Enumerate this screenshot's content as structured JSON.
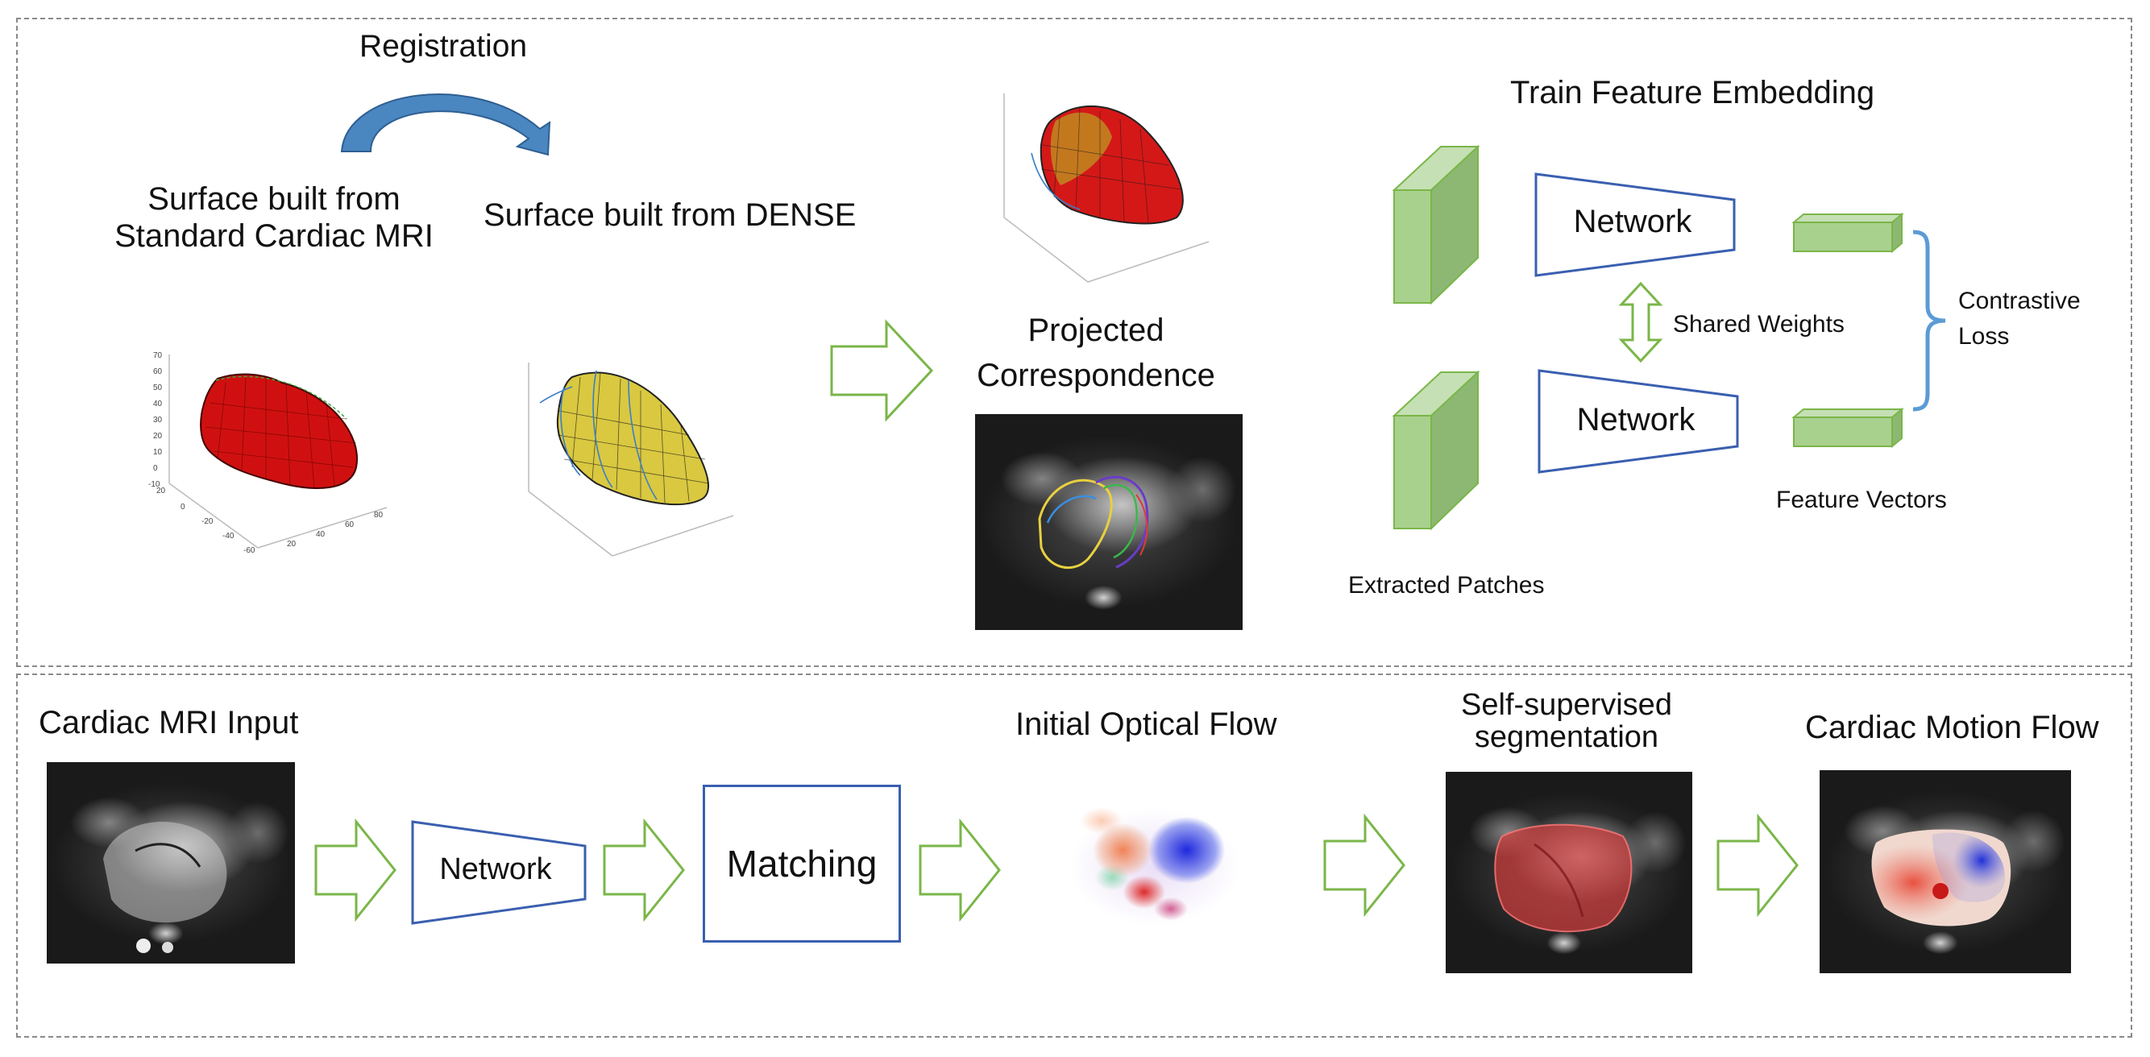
{
  "top_panel": {
    "registration_label": "Registration",
    "surface_standard_label_line1": "Surface built from",
    "surface_standard_label_line2": "Standard Cardiac MRI",
    "surface_dense_label": "Surface built from DENSE",
    "projected_label_line1": "Projected",
    "projected_label_line2": "Correspondence",
    "train_title": "Train Feature Embedding",
    "network_top_label": "Network",
    "network_bottom_label": "Network",
    "shared_weights_label": "Shared Weights",
    "contrastive_label_line1": "Contrastive",
    "contrastive_label_line2": "Loss",
    "feature_vectors_label": "Feature Vectors",
    "extracted_patches_label": "Extracted Patches",
    "plot_axis_ticks_z": [
      "70",
      "60",
      "50",
      "40",
      "30",
      "20",
      "10",
      "0",
      "-10"
    ],
    "plot_axis_ticks_x": [
      "20",
      "0",
      "-20",
      "-40",
      "-60"
    ],
    "plot_axis_ticks_y": [
      "20",
      "40",
      "60",
      "80"
    ]
  },
  "bottom_panel": {
    "input_label": "Cardiac MRI Input",
    "network_label": "Network",
    "matching_label": "Matching",
    "optical_flow_label": "Initial Optical Flow",
    "segmentation_label_line1": "Self-supervised",
    "segmentation_label_line2": "segmentation",
    "motion_flow_label": "Cardiac Motion Flow"
  },
  "colors": {
    "arrow_green": "#7ab648",
    "network_blue": "#3a5fb0",
    "box_green_front": "#a9d18e",
    "box_green_side": "#8cb873",
    "bracket_blue": "#5b9bd5",
    "registration_arrow": "#4a86c0",
    "surface_red": "#d01010",
    "surface_yellow": "#d9c840"
  }
}
